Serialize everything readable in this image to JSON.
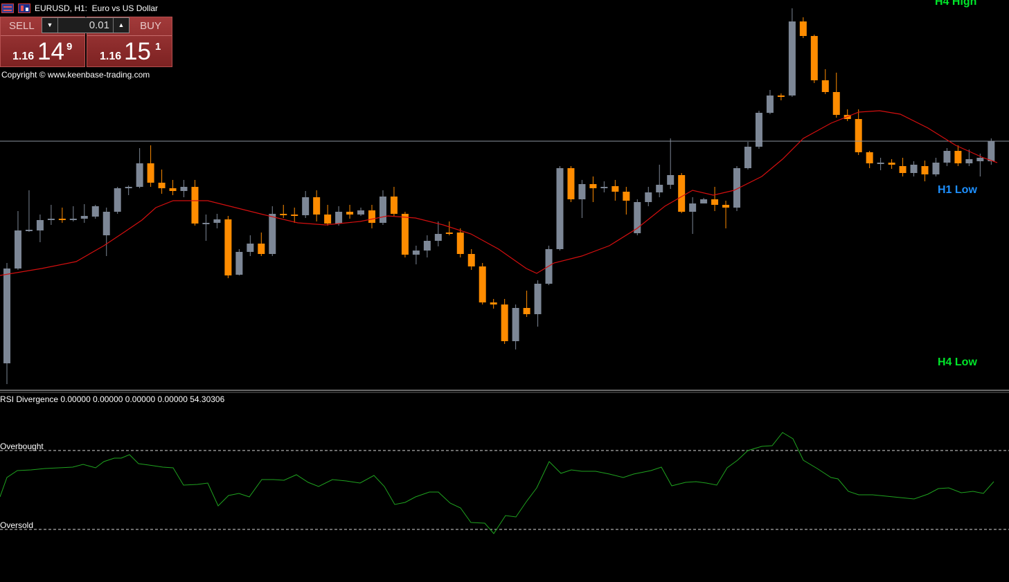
{
  "title": {
    "symbol_text": "EURUSD, H1:  Euro vs US Dollar",
    "icons": [
      "one-click-trading-icon",
      "chart-trade-icon"
    ]
  },
  "trade_panel": {
    "sell_label": "SELL",
    "buy_label": "BUY",
    "lot_value": "0.01",
    "sell_price_small": "1.16",
    "sell_price_big": "14",
    "sell_price_sup": "9",
    "buy_price_small": "1.16",
    "buy_price_big": "15",
    "buy_price_sup": "1",
    "down_icon": "triangle-down-icon",
    "up_icon": "triangle-up-icon"
  },
  "copyright": "Copyright © www.keenbase-trading.com",
  "labels": {
    "h4_high": "H4 High",
    "h1_low": "H1 Low",
    "h4_low": "H4 Low"
  },
  "indicator": {
    "title": "RSI Divergence 0.00000 0.00000 0.00000 0.00000 54.30306",
    "overbought_label": "Overbought",
    "oversold_label": "Oversold"
  },
  "colors": {
    "bull": "#7d8796",
    "bear": "#ff8c00",
    "ma": "#d50f0f",
    "rsi": "#1fa31f",
    "h4": "#00e62a",
    "h1": "#1e90ff",
    "background": "#000000"
  },
  "chart_data": {
    "type": "candlestick",
    "symbol": "EURUSD",
    "timeframe": "H1",
    "candle_count": 90,
    "ma_line_color": "red",
    "indicator": {
      "name": "RSI Divergence",
      "last_value": 54.30306,
      "levels": [
        "Overbought",
        "Oversold"
      ]
    }
  }
}
